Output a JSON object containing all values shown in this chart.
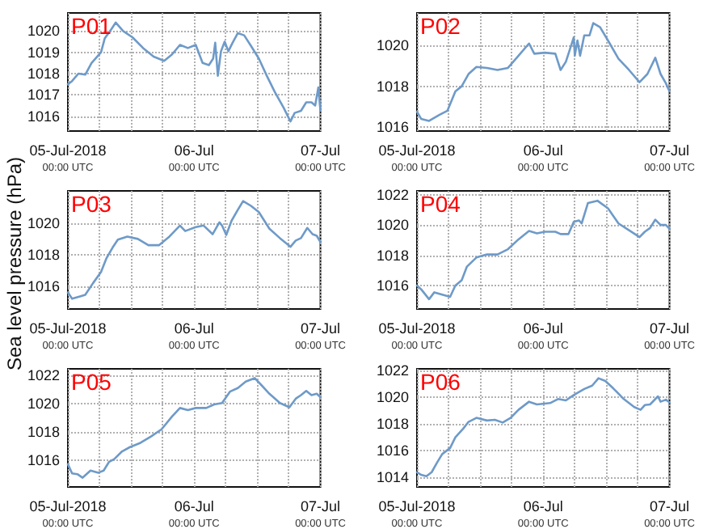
{
  "chart_data": [
    {
      "type": "line",
      "title": "P01",
      "x": [
        "2018-07-05T00:00",
        "2018-07-05T00:48",
        "2018-07-05T02:00",
        "2018-07-05T03:18",
        "2018-07-05T04:30",
        "2018-07-05T06:18",
        "2018-07-05T07:00",
        "2018-07-05T08:18",
        "2018-07-05T09:06",
        "2018-07-05T10:30",
        "2018-07-05T12:18",
        "2018-07-05T14:18",
        "2018-07-05T16:18",
        "2018-07-05T18:18",
        "2018-07-05T19:48",
        "2018-07-05T21:18",
        "2018-07-05T22:48",
        "2018-07-06T00:18",
        "2018-07-06T01:36",
        "2018-07-06T02:48",
        "2018-07-06T03:36",
        "2018-07-06T04:00",
        "2018-07-06T04:30",
        "2018-07-06T05:06",
        "2018-07-06T05:48",
        "2018-07-06T06:30",
        "2018-07-06T07:18",
        "2018-07-06T08:18",
        "2018-07-06T09:30",
        "2018-07-06T10:48",
        "2018-07-06T12:18",
        "2018-07-06T13:48",
        "2018-07-06T15:18",
        "2018-07-06T17:00",
        "2018-07-06T18:18",
        "2018-07-06T19:06",
        "2018-07-06T20:18",
        "2018-07-06T21:18",
        "2018-07-06T22:18",
        "2018-07-06T23:00",
        "2018-07-06T23:36",
        "2018-07-07T00:00"
      ],
      "series": [
        {
          "color": "#6e9ac8",
          "values": [
            1017.5,
            1017.65,
            1018.0,
            1017.95,
            1018.5,
            1019.0,
            1019.65,
            1020.1,
            1020.4,
            1020.0,
            1019.7,
            1019.2,
            1018.8,
            1018.6,
            1018.9,
            1019.35,
            1019.2,
            1019.35,
            1018.5,
            1018.4,
            1018.7,
            1019.45,
            1017.9,
            1019.05,
            1019.5,
            1019.05,
            1019.45,
            1019.9,
            1019.8,
            1019.3,
            1018.7,
            1017.9,
            1017.15,
            1016.4,
            1015.75,
            1016.15,
            1016.25,
            1016.65,
            1016.65,
            1016.5,
            1017.35,
            1016.25
          ]
        }
      ],
      "xlim": [
        "2018-07-05T00:00",
        "2018-07-07T00:00"
      ],
      "xticks": [
        {
          "value": "2018-07-05T00:00",
          "label": "05-Jul-2018\n00:00 UTC"
        },
        {
          "value": "2018-07-05T06:00",
          "label": null
        },
        {
          "value": "2018-07-05T12:00",
          "label": null
        },
        {
          "value": "2018-07-05T18:00",
          "label": null
        },
        {
          "value": "2018-07-06T00:00",
          "label": "06-Jul\n00:00 UTC"
        },
        {
          "value": "2018-07-06T06:00",
          "label": null
        },
        {
          "value": "2018-07-06T12:00",
          "label": null
        },
        {
          "value": "2018-07-06T18:00",
          "label": null
        },
        {
          "value": "2018-07-07T00:00",
          "label": "07-Jul\n00:00 UTC"
        }
      ],
      "ylim": [
        1015.3,
        1020.85
      ],
      "yticks": [
        1016,
        1017,
        1018,
        1019,
        1020
      ],
      "grid": true,
      "marker": "none",
      "line_style": "solid"
    },
    {
      "type": "line",
      "title": "P02",
      "x": [
        "2018-07-05T00:00",
        "2018-07-05T00:48",
        "2018-07-05T02:18",
        "2018-07-05T04:18",
        "2018-07-05T05:48",
        "2018-07-05T07:18",
        "2018-07-05T08:30",
        "2018-07-05T09:48",
        "2018-07-05T11:18",
        "2018-07-05T13:18",
        "2018-07-05T15:18",
        "2018-07-05T17:18",
        "2018-07-05T19:18",
        "2018-07-05T21:18",
        "2018-07-05T22:18",
        "2018-07-06T00:18",
        "2018-07-06T02:18",
        "2018-07-06T03:18",
        "2018-07-06T04:18",
        "2018-07-06T05:18",
        "2018-07-06T05:48",
        "2018-07-06T06:00",
        "2018-07-06T06:30",
        "2018-07-06T07:00",
        "2018-07-06T07:48",
        "2018-07-06T08:48",
        "2018-07-06T09:30",
        "2018-07-06T10:48",
        "2018-07-06T12:18",
        "2018-07-06T14:18",
        "2018-07-06T16:18",
        "2018-07-06T18:18",
        "2018-07-06T19:48",
        "2018-07-06T21:18",
        "2018-07-06T22:18",
        "2018-07-06T23:18",
        "2018-07-07T00:00"
      ],
      "series": [
        {
          "color": "#6e9ac8",
          "values": [
            1016.75,
            1016.4,
            1016.3,
            1016.6,
            1016.8,
            1017.75,
            1018.0,
            1018.6,
            1018.95,
            1018.9,
            1018.8,
            1018.9,
            1019.5,
            1020.1,
            1019.6,
            1019.65,
            1019.6,
            1018.8,
            1019.2,
            1020.0,
            1020.4,
            1019.5,
            1020.25,
            1019.5,
            1020.5,
            1020.5,
            1021.1,
            1020.9,
            1020.25,
            1019.35,
            1018.8,
            1018.2,
            1018.6,
            1019.4,
            1018.6,
            1018.15,
            1017.75
          ]
        }
      ],
      "xlim": [
        "2018-07-05T00:00",
        "2018-07-07T00:00"
      ],
      "xticks": [
        {
          "value": "2018-07-05T00:00",
          "label": "05-Jul-2018\n00:00 UTC"
        },
        {
          "value": "2018-07-05T06:00",
          "label": null
        },
        {
          "value": "2018-07-05T12:00",
          "label": null
        },
        {
          "value": "2018-07-05T18:00",
          "label": null
        },
        {
          "value": "2018-07-06T00:00",
          "label": "06-Jul\n00:00 UTC"
        },
        {
          "value": "2018-07-06T06:00",
          "label": null
        },
        {
          "value": "2018-07-06T12:00",
          "label": null
        },
        {
          "value": "2018-07-06T18:00",
          "label": null
        },
        {
          "value": "2018-07-07T00:00",
          "label": "07-Jul\n00:00 UTC"
        }
      ],
      "ylim": [
        1015.8,
        1021.6
      ],
      "yticks": [
        1016,
        1018,
        1020
      ],
      "grid": true,
      "marker": "none",
      "line_style": "solid"
    },
    {
      "type": "line",
      "title": "P03",
      "ylabel": "Sea level pressure (hPa)",
      "x": [
        "2018-07-05T00:00",
        "2018-07-05T00:48",
        "2018-07-05T02:18",
        "2018-07-05T03:18",
        "2018-07-05T04:48",
        "2018-07-05T06:18",
        "2018-07-05T07:18",
        "2018-07-05T08:30",
        "2018-07-05T09:30",
        "2018-07-05T11:18",
        "2018-07-05T13:18",
        "2018-07-05T15:18",
        "2018-07-05T17:18",
        "2018-07-05T19:18",
        "2018-07-05T21:18",
        "2018-07-05T22:18",
        "2018-07-06T00:18",
        "2018-07-06T01:48",
        "2018-07-06T03:30",
        "2018-07-06T04:48",
        "2018-07-06T05:18",
        "2018-07-06T06:06",
        "2018-07-06T07:06",
        "2018-07-06T08:18",
        "2018-07-06T09:18",
        "2018-07-06T10:48",
        "2018-07-06T12:18",
        "2018-07-06T14:18",
        "2018-07-06T16:18",
        "2018-07-06T18:18",
        "2018-07-06T19:18",
        "2018-07-06T20:18",
        "2018-07-06T21:30",
        "2018-07-06T22:30",
        "2018-07-06T23:18",
        "2018-07-07T00:00"
      ],
      "series": [
        {
          "color": "#6e9ac8",
          "values": [
            1015.6,
            1015.2,
            1015.35,
            1015.45,
            1016.2,
            1016.9,
            1017.75,
            1018.45,
            1018.95,
            1019.15,
            1019.0,
            1018.6,
            1018.6,
            1019.15,
            1019.85,
            1019.5,
            1019.75,
            1019.85,
            1019.3,
            1020.05,
            1019.85,
            1019.25,
            1020.15,
            1020.85,
            1021.4,
            1021.1,
            1020.7,
            1019.65,
            1019.05,
            1018.5,
            1018.9,
            1019.05,
            1019.7,
            1019.3,
            1019.2,
            1018.8
          ]
        }
      ],
      "xlim": [
        "2018-07-05T00:00",
        "2018-07-07T00:00"
      ],
      "xticks": [
        {
          "value": "2018-07-05T00:00",
          "label": "05-Jul-2018\n00:00 UTC"
        },
        {
          "value": "2018-07-05T06:00",
          "label": null
        },
        {
          "value": "2018-07-05T12:00",
          "label": null
        },
        {
          "value": "2018-07-05T18:00",
          "label": null
        },
        {
          "value": "2018-07-06T00:00",
          "label": "06-Jul\n00:00 UTC"
        },
        {
          "value": "2018-07-06T06:00",
          "label": null
        },
        {
          "value": "2018-07-06T12:00",
          "label": null
        },
        {
          "value": "2018-07-06T18:00",
          "label": null
        },
        {
          "value": "2018-07-07T00:00",
          "label": "07-Jul\n00:00 UTC"
        }
      ],
      "ylim": [
        1014.55,
        1022.05
      ],
      "yticks": [
        1016,
        1018,
        1020
      ],
      "grid": true,
      "marker": "none",
      "line_style": "solid"
    },
    {
      "type": "line",
      "title": "P04",
      "x": [
        "2018-07-05T00:00",
        "2018-07-05T00:48",
        "2018-07-05T02:18",
        "2018-07-05T03:18",
        "2018-07-05T04:48",
        "2018-07-05T06:18",
        "2018-07-05T07:18",
        "2018-07-05T08:30",
        "2018-07-05T09:30",
        "2018-07-05T11:18",
        "2018-07-05T13:18",
        "2018-07-05T15:18",
        "2018-07-05T17:18",
        "2018-07-05T19:18",
        "2018-07-05T21:18",
        "2018-07-05T22:48",
        "2018-07-06T00:18",
        "2018-07-06T02:18",
        "2018-07-06T03:18",
        "2018-07-06T04:48",
        "2018-07-06T05:48",
        "2018-07-06T06:48",
        "2018-07-06T07:18",
        "2018-07-06T08:30",
        "2018-07-06T10:18",
        "2018-07-06T12:18",
        "2018-07-06T14:18",
        "2018-07-06T16:18",
        "2018-07-06T18:18",
        "2018-07-06T19:18",
        "2018-07-06T20:18",
        "2018-07-06T21:18",
        "2018-07-06T22:18",
        "2018-07-06T23:18",
        "2018-07-07T00:00"
      ],
      "series": [
        {
          "color": "#6e9ac8",
          "values": [
            1016.0,
            1015.75,
            1015.1,
            1015.55,
            1015.4,
            1015.25,
            1016.0,
            1016.35,
            1017.25,
            1017.85,
            1018.05,
            1018.05,
            1018.4,
            1019.05,
            1019.6,
            1019.45,
            1019.55,
            1019.55,
            1019.4,
            1019.4,
            1020.2,
            1020.3,
            1020.1,
            1021.45,
            1021.6,
            1021.1,
            1020.1,
            1019.65,
            1019.2,
            1019.55,
            1019.8,
            1020.35,
            1020.0,
            1020.0,
            1019.75
          ]
        }
      ],
      "xlim": [
        "2018-07-05T00:00",
        "2018-07-07T00:00"
      ],
      "xticks": [
        {
          "value": "2018-07-05T00:00",
          "label": "05-Jul-2018\n00:00 UTC"
        },
        {
          "value": "2018-07-05T06:00",
          "label": null
        },
        {
          "value": "2018-07-05T12:00",
          "label": null
        },
        {
          "value": "2018-07-05T18:00",
          "label": null
        },
        {
          "value": "2018-07-06T00:00",
          "label": "06-Jul\n00:00 UTC"
        },
        {
          "value": "2018-07-06T06:00",
          "label": null
        },
        {
          "value": "2018-07-06T12:00",
          "label": null
        },
        {
          "value": "2018-07-06T18:00",
          "label": null
        },
        {
          "value": "2018-07-07T00:00",
          "label": "07-Jul\n00:00 UTC"
        }
      ],
      "ylim": [
        1014.45,
        1022.25
      ],
      "yticks": [
        1016,
        1018,
        1020,
        1022
      ],
      "grid": true,
      "marker": "none",
      "line_style": "solid"
    },
    {
      "type": "line",
      "title": "P05",
      "x": [
        "2018-07-05T00:00",
        "2018-07-05T00:48",
        "2018-07-05T01:48",
        "2018-07-05T02:48",
        "2018-07-05T04:18",
        "2018-07-05T05:48",
        "2018-07-05T06:48",
        "2018-07-05T07:48",
        "2018-07-05T08:48",
        "2018-07-05T10:18",
        "2018-07-05T11:48",
        "2018-07-05T13:48",
        "2018-07-05T15:48",
        "2018-07-05T17:48",
        "2018-07-05T19:48",
        "2018-07-05T21:18",
        "2018-07-05T22:48",
        "2018-07-06T00:18",
        "2018-07-06T02:18",
        "2018-07-06T03:48",
        "2018-07-06T05:18",
        "2018-07-06T06:48",
        "2018-07-06T08:18",
        "2018-07-06T09:48",
        "2018-07-06T11:30",
        "2018-07-06T12:48",
        "2018-07-06T14:18",
        "2018-07-06T16:18",
        "2018-07-06T18:06",
        "2018-07-06T19:18",
        "2018-07-06T20:18",
        "2018-07-06T21:18",
        "2018-07-06T22:18",
        "2018-07-06T23:18",
        "2018-07-07T00:00"
      ],
      "series": [
        {
          "color": "#6e9ac8",
          "values": [
            1015.75,
            1015.1,
            1015.05,
            1014.8,
            1015.3,
            1015.15,
            1015.3,
            1015.9,
            1016.1,
            1016.65,
            1016.95,
            1017.25,
            1017.7,
            1018.2,
            1019.1,
            1019.7,
            1019.55,
            1019.7,
            1019.7,
            1019.95,
            1020.05,
            1020.85,
            1021.1,
            1021.55,
            1021.8,
            1021.3,
            1020.7,
            1020.05,
            1019.75,
            1020.35,
            1020.6,
            1020.9,
            1020.6,
            1020.7,
            1020.45
          ]
        }
      ],
      "xlim": [
        "2018-07-05T00:00",
        "2018-07-07T00:00"
      ],
      "xticks": [
        {
          "value": "2018-07-05T00:00",
          "label": "05-Jul-2018\n00:00 UTC"
        },
        {
          "value": "2018-07-05T06:00",
          "label": null
        },
        {
          "value": "2018-07-05T12:00",
          "label": null
        },
        {
          "value": "2018-07-05T18:00",
          "label": null
        },
        {
          "value": "2018-07-06T00:00",
          "label": "06-Jul\n00:00 UTC"
        },
        {
          "value": "2018-07-06T06:00",
          "label": null
        },
        {
          "value": "2018-07-06T12:00",
          "label": null
        },
        {
          "value": "2018-07-06T18:00",
          "label": null
        },
        {
          "value": "2018-07-07T00:00",
          "label": "07-Jul\n00:00 UTC"
        }
      ],
      "ylim": [
        1014.15,
        1022.45
      ],
      "yticks": [
        1016,
        1018,
        1020,
        1022
      ],
      "grid": true,
      "marker": "none",
      "line_style": "solid"
    },
    {
      "type": "line",
      "title": "P06",
      "x": [
        "2018-07-05T00:00",
        "2018-07-05T00:48",
        "2018-07-05T01:48",
        "2018-07-05T02:48",
        "2018-07-05T03:48",
        "2018-07-05T04:48",
        "2018-07-05T06:18",
        "2018-07-05T07:18",
        "2018-07-05T08:48",
        "2018-07-05T09:48",
        "2018-07-05T11:18",
        "2018-07-05T13:18",
        "2018-07-05T14:48",
        "2018-07-05T16:18",
        "2018-07-05T17:48",
        "2018-07-05T19:18",
        "2018-07-05T21:18",
        "2018-07-05T22:48",
        "2018-07-06T01:18",
        "2018-07-06T02:48",
        "2018-07-06T04:18",
        "2018-07-06T05:48",
        "2018-07-06T07:48",
        "2018-07-06T09:18",
        "2018-07-06T10:30",
        "2018-07-06T11:48",
        "2018-07-06T13:18",
        "2018-07-06T15:18",
        "2018-07-06T17:18",
        "2018-07-06T18:30",
        "2018-07-06T19:18",
        "2018-07-06T20:18",
        "2018-07-06T21:48",
        "2018-07-06T22:18",
        "2018-07-06T23:18",
        "2018-07-07T00:00"
      ],
      "series": [
        {
          "color": "#6e9ac8",
          "values": [
            1014.4,
            1014.2,
            1014.1,
            1014.4,
            1015.1,
            1015.75,
            1016.2,
            1017.0,
            1017.65,
            1018.15,
            1018.45,
            1018.25,
            1018.3,
            1018.1,
            1018.45,
            1019.05,
            1019.65,
            1019.45,
            1019.55,
            1019.85,
            1019.75,
            1020.15,
            1020.6,
            1020.85,
            1021.4,
            1021.2,
            1020.65,
            1019.85,
            1019.25,
            1019.05,
            1019.4,
            1019.45,
            1020.05,
            1019.65,
            1019.8,
            1019.6
          ]
        }
      ],
      "xlim": [
        "2018-07-05T00:00",
        "2018-07-07T00:00"
      ],
      "xticks": [
        {
          "value": "2018-07-05T00:00",
          "label": "05-Jul-2018\n00:00 UTC"
        },
        {
          "value": "2018-07-05T06:00",
          "label": null
        },
        {
          "value": "2018-07-05T12:00",
          "label": null
        },
        {
          "value": "2018-07-05T18:00",
          "label": null
        },
        {
          "value": "2018-07-06T00:00",
          "label": "06-Jul\n00:00 UTC"
        },
        {
          "value": "2018-07-06T06:00",
          "label": null
        },
        {
          "value": "2018-07-06T12:00",
          "label": null
        },
        {
          "value": "2018-07-06T18:00",
          "label": null
        },
        {
          "value": "2018-07-07T00:00",
          "label": "07-Jul\n00:00 UTC"
        }
      ],
      "ylim": [
        1013.3,
        1022.1
      ],
      "yticks": [
        1014,
        1016,
        1018,
        1020,
        1022
      ],
      "grid": true,
      "marker": "none",
      "line_style": "solid"
    }
  ]
}
